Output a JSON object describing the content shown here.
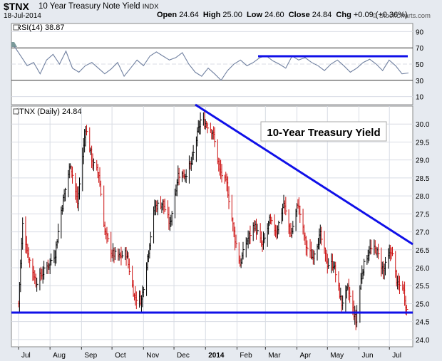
{
  "header": {
    "symbol": "$TNX",
    "name": "10 Year Treasury Note Yield",
    "exchange": "INDX",
    "date": "18-Jul-2014",
    "open_label": "Open",
    "open": "24.64",
    "high_label": "High",
    "high": "25.00",
    "low_label": "Low",
    "low": "24.60",
    "close_label": "Close",
    "close": "24.84",
    "chg_label": "Chg",
    "chg": "+0.09 (+0.36%)",
    "credit": "© StockCharts.com"
  },
  "rsi_panel": {
    "label": "RSI(14) 38.87",
    "y_ticks": [
      "90",
      "70",
      "50",
      "30",
      "10"
    ]
  },
  "price_panel": {
    "label": "$TNX (Daily) 24.84",
    "annotation": "10-Year Treasury Yield"
  },
  "colors": {
    "up": "#000000",
    "down": "#cc1111",
    "trendline": "#1010e8",
    "rsi": "#7080a0",
    "background": "#e6eaf0",
    "panel": "#ffffff"
  },
  "chart_data": [
    {
      "type": "line",
      "title": "RSI(14) 38.87",
      "ylim": [
        0,
        100
      ],
      "y_ticks": [
        90,
        70,
        50,
        30,
        10
      ],
      "series": [
        {
          "name": "RSI(14)",
          "values": [
            72,
            60,
            48,
            52,
            38,
            55,
            62,
            50,
            66,
            45,
            40,
            48,
            52,
            45,
            38,
            44,
            52,
            35,
            45,
            55,
            48,
            60,
            65,
            60,
            55,
            58,
            64,
            50,
            40,
            35,
            45,
            38,
            30,
            42,
            50,
            55,
            48,
            52,
            58,
            60,
            54,
            50,
            45,
            60,
            55,
            58,
            52,
            48,
            42,
            50,
            55,
            48,
            40,
            45,
            52,
            56,
            50,
            42,
            55,
            48,
            38,
            39
          ]
        }
      ]
    },
    {
      "type": "bar",
      "title": "$TNX (Daily) 24.84",
      "x_tick_labels": [
        "Jul",
        "Aug",
        "Sep",
        "Oct",
        "Nov",
        "Dec",
        "2014",
        "Feb",
        "Mar",
        "Apr",
        "May",
        "Jun",
        "Jul"
      ],
      "ylim": [
        23.8,
        30.5
      ],
      "y_ticks": [
        30.0,
        29.5,
        29.0,
        28.5,
        28.0,
        27.5,
        27.0,
        26.5,
        26.0,
        25.5,
        25.0,
        24.5,
        24.0
      ],
      "anchors": [
        {
          "date": "2013-07-01",
          "value": 25.0
        },
        {
          "date": "2013-07-05",
          "value": 27.2
        },
        {
          "date": "2013-07-10",
          "value": 26.4
        },
        {
          "date": "2013-07-18",
          "value": 25.6
        },
        {
          "date": "2013-07-26",
          "value": 25.9
        },
        {
          "date": "2013-08-06",
          "value": 26.4
        },
        {
          "date": "2013-08-12",
          "value": 27.6
        },
        {
          "date": "2013-08-21",
          "value": 28.9
        },
        {
          "date": "2013-08-28",
          "value": 27.8
        },
        {
          "date": "2013-09-05",
          "value": 29.9
        },
        {
          "date": "2013-09-12",
          "value": 28.9
        },
        {
          "date": "2013-09-18",
          "value": 28.6
        },
        {
          "date": "2013-09-24",
          "value": 27.0
        },
        {
          "date": "2013-10-01",
          "value": 26.4
        },
        {
          "date": "2013-10-08",
          "value": 26.3
        },
        {
          "date": "2013-10-15",
          "value": 26.4
        },
        {
          "date": "2013-10-23",
          "value": 25.2
        },
        {
          "date": "2013-10-30",
          "value": 25.1
        },
        {
          "date": "2013-11-05",
          "value": 26.3
        },
        {
          "date": "2013-11-12",
          "value": 27.7
        },
        {
          "date": "2013-11-20",
          "value": 27.8
        },
        {
          "date": "2013-11-27",
          "value": 27.2
        },
        {
          "date": "2013-12-05",
          "value": 28.6
        },
        {
          "date": "2013-12-12",
          "value": 28.6
        },
        {
          "date": "2013-12-18",
          "value": 28.9
        },
        {
          "date": "2013-12-27",
          "value": 30.1
        },
        {
          "date": "2014-01-02",
          "value": 30.0
        },
        {
          "date": "2014-01-08",
          "value": 29.8
        },
        {
          "date": "2014-01-15",
          "value": 28.7
        },
        {
          "date": "2014-01-22",
          "value": 28.3
        },
        {
          "date": "2014-01-30",
          "value": 26.8
        },
        {
          "date": "2014-02-04",
          "value": 26.1
        },
        {
          "date": "2014-02-10",
          "value": 26.7
        },
        {
          "date": "2014-02-18",
          "value": 27.2
        },
        {
          "date": "2014-02-26",
          "value": 26.6
        },
        {
          "date": "2014-03-05",
          "value": 27.3
        },
        {
          "date": "2014-03-12",
          "value": 27.0
        },
        {
          "date": "2014-03-19",
          "value": 27.8
        },
        {
          "date": "2014-03-26",
          "value": 26.9
        },
        {
          "date": "2014-04-02",
          "value": 27.8
        },
        {
          "date": "2014-04-10",
          "value": 26.6
        },
        {
          "date": "2014-04-16",
          "value": 26.3
        },
        {
          "date": "2014-04-24",
          "value": 26.9
        },
        {
          "date": "2014-05-01",
          "value": 26.1
        },
        {
          "date": "2014-05-07",
          "value": 26.1
        },
        {
          "date": "2014-05-15",
          "value": 25.0
        },
        {
          "date": "2014-05-21",
          "value": 25.4
        },
        {
          "date": "2014-05-29",
          "value": 24.5
        },
        {
          "date": "2014-06-04",
          "value": 25.9
        },
        {
          "date": "2014-06-11",
          "value": 26.5
        },
        {
          "date": "2014-06-18",
          "value": 26.5
        },
        {
          "date": "2014-06-25",
          "value": 25.9
        },
        {
          "date": "2014-07-03",
          "value": 26.5
        },
        {
          "date": "2014-07-09",
          "value": 25.5
        },
        {
          "date": "2014-07-14",
          "value": 25.5
        },
        {
          "date": "2014-07-18",
          "value": 24.84
        }
      ]
    }
  ]
}
